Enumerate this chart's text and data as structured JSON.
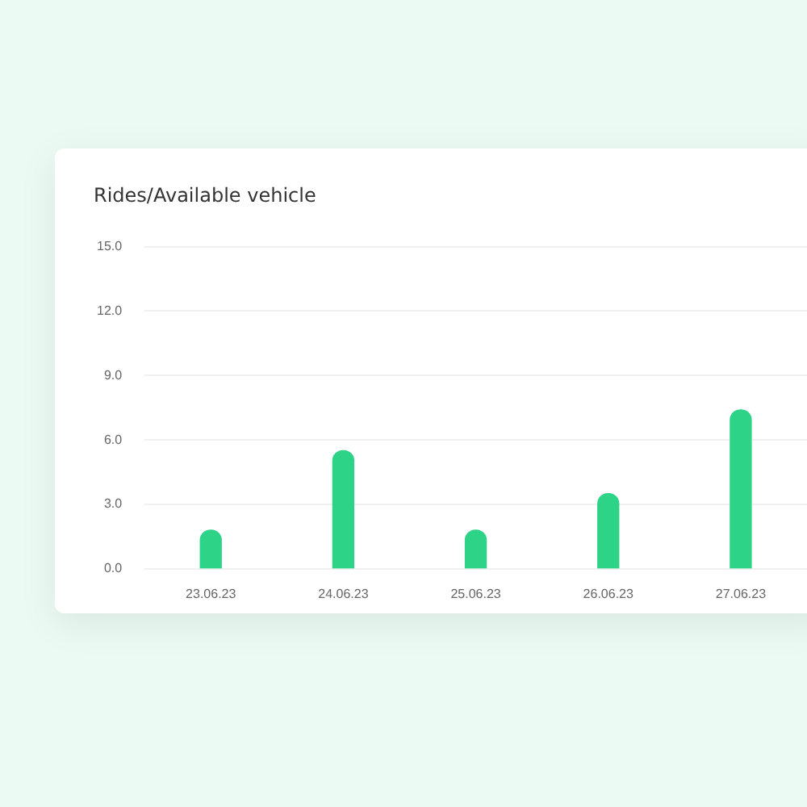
{
  "chart_data": {
    "type": "bar",
    "title": "Rides/Available vehicle",
    "categories": [
      "23.06.23",
      "24.06.23",
      "25.06.23",
      "26.06.23",
      "27.06.23"
    ],
    "values": [
      1.8,
      5.5,
      1.8,
      3.5,
      7.4
    ],
    "color": "#2dd487",
    "ylim": [
      0,
      15
    ],
    "yticks": [
      {
        "value": 0,
        "label": "0.0"
      },
      {
        "value": 3,
        "label": "3.0"
      },
      {
        "value": 6,
        "label": "6.0"
      },
      {
        "value": 9,
        "label": "9.0"
      },
      {
        "value": 12,
        "label": "12.0"
      },
      {
        "value": 15,
        "label": "15.0"
      }
    ],
    "grid": "y",
    "legend": false
  }
}
